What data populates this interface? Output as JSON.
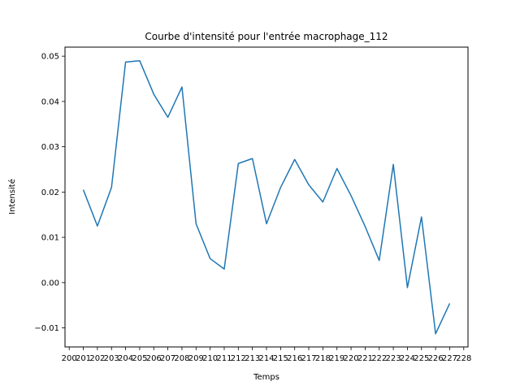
{
  "chart_data": {
    "type": "line",
    "title": "Courbe d'intensité pour l'entrée macrophage_112",
    "xlabel": "Temps",
    "ylabel": "Intensité",
    "x": [
      201,
      202,
      203,
      204,
      205,
      206,
      207,
      208,
      209,
      210,
      211,
      212,
      213,
      214,
      215,
      216,
      217,
      218,
      219,
      220,
      221,
      222,
      223,
      224,
      225,
      226,
      227
    ],
    "xticks": [
      200,
      201,
      202,
      203,
      204,
      205,
      206,
      207,
      208,
      209,
      210,
      211,
      212,
      213,
      214,
      215,
      216,
      217,
      218,
      219,
      220,
      221,
      222,
      223,
      224,
      225,
      226,
      227,
      228
    ],
    "xtick_labels": [
      "200",
      "201",
      "202",
      "203",
      "204",
      "205",
      "206",
      "207",
      "208",
      "209",
      "210",
      "211",
      "212",
      "213",
      "214",
      "215",
      "216",
      "217",
      "218",
      "219",
      "220",
      "221",
      "222",
      "223",
      "224",
      "225",
      "226",
      "227",
      "228"
    ],
    "xlim": [
      199.7,
      228.3
    ],
    "series": [
      {
        "values": [
          0.0205,
          0.0125,
          0.021,
          0.0487,
          0.049,
          0.0416,
          0.0365,
          0.0432,
          0.013,
          0.0053,
          0.003,
          0.0263,
          0.0274,
          0.013,
          0.021,
          0.0272,
          0.0216,
          0.0178,
          0.0252,
          0.0192,
          0.0124,
          0.0049,
          0.0261,
          -0.0011,
          0.0145,
          -0.0113,
          -0.0046
        ],
        "color": "#1f77b4"
      }
    ],
    "yticks": [
      -0.01,
      0.0,
      0.01,
      0.02,
      0.03,
      0.04,
      0.05
    ],
    "ytick_labels": [
      "−0.01",
      "0.00",
      "0.01",
      "0.02",
      "0.03",
      "0.04",
      "0.05"
    ],
    "ylim": [
      -0.0142,
      0.052
    ],
    "grid": false,
    "legend": false
  }
}
